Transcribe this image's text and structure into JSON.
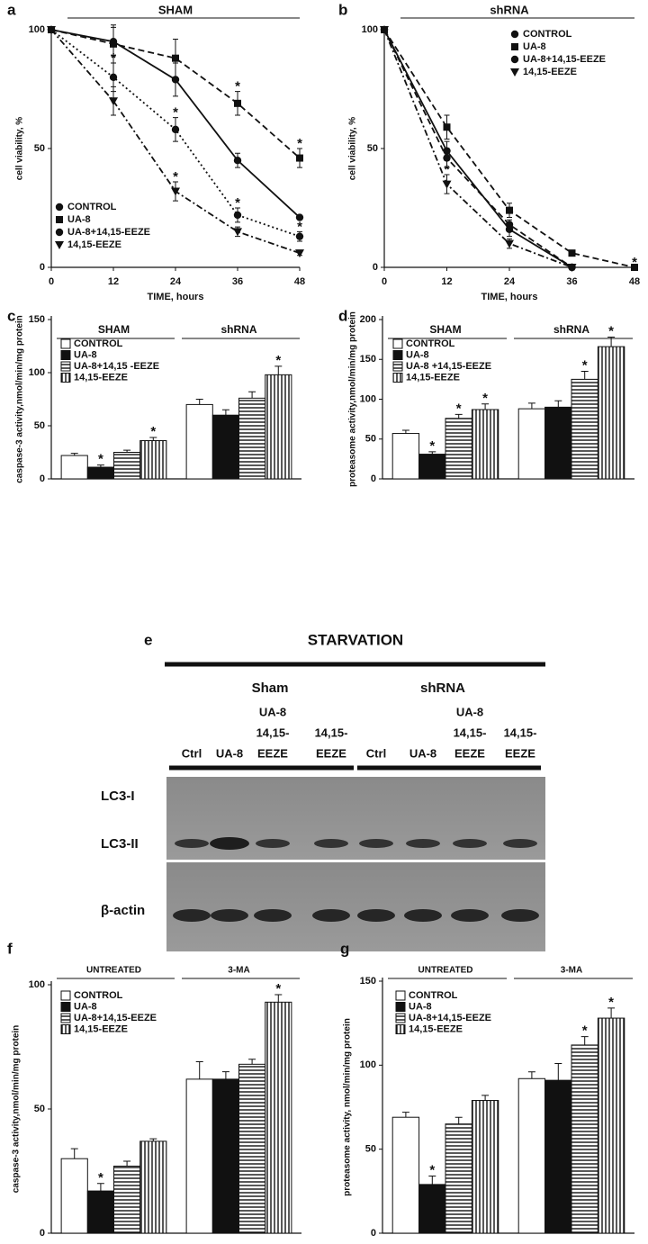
{
  "chart_data": [
    {
      "type": "line",
      "label": "a",
      "title": "SHAM",
      "x": [
        0,
        12,
        24,
        36,
        48
      ],
      "xlim": [
        0,
        48
      ],
      "xticks": [
        0,
        12,
        24,
        36,
        48
      ],
      "ylim": [
        0,
        100
      ],
      "yticks": [
        0,
        50,
        100
      ],
      "xlabel": "TIME, hours",
      "ylabel": "cell viability, %",
      "legend": "lower left",
      "series": [
        {
          "name": "CONTROL",
          "color": "#111111",
          "marker": "circle",
          "dash": "solid",
          "values": [
            100,
            95,
            79,
            45,
            21
          ],
          "errors": [
            0,
            6,
            7,
            3,
            0
          ]
        },
        {
          "name": "UA-8",
          "color": "#111111",
          "marker": "square",
          "dash": "dashed",
          "values": [
            100,
            94,
            88,
            69,
            46
          ],
          "errors": [
            0,
            8,
            8,
            5,
            4
          ]
        },
        {
          "name": "UA-8+14,15-EEZE",
          "color": "#111111",
          "marker": "circle",
          "dash": "dotted",
          "values": [
            100,
            80,
            58,
            22,
            13
          ],
          "errors": [
            0,
            6,
            5,
            3,
            2
          ]
        },
        {
          "name": "14,15-EEZE",
          "color": "#111111",
          "marker": "triangle",
          "dash": "dashdot",
          "values": [
            100,
            70,
            32,
            15,
            6
          ],
          "errors": [
            0,
            6,
            4,
            2,
            1
          ]
        }
      ],
      "annotations": [
        {
          "text": "*",
          "series": 1,
          "point": 3
        },
        {
          "text": "*",
          "series": 1,
          "point": 4
        },
        {
          "text": "*",
          "series": 2,
          "point": 1
        },
        {
          "text": "*",
          "series": 2,
          "point": 2
        },
        {
          "text": "*",
          "series": 2,
          "point": 3
        },
        {
          "text": "*",
          "series": 2,
          "point": 4
        },
        {
          "text": "*",
          "series": 3,
          "point": 2
        }
      ]
    },
    {
      "type": "line",
      "label": "b",
      "title": "shRNA",
      "x": [
        0,
        12,
        24,
        36,
        48
      ],
      "xlim": [
        0,
        48
      ],
      "xticks": [
        0,
        12,
        24,
        36,
        48
      ],
      "ylim": [
        0,
        100
      ],
      "yticks": [
        0,
        50,
        100
      ],
      "xlabel": "TIME, hours",
      "ylabel": "cell viability, %",
      "legend": "upper right",
      "series": [
        {
          "name": "CONTROL",
          "color": "#111111",
          "marker": "circle",
          "dash": "solid",
          "values": [
            100,
            49,
            16,
            0,
            null
          ],
          "errors": [
            0,
            4,
            3,
            1,
            null
          ]
        },
        {
          "name": "UA-8",
          "color": "#111111",
          "marker": "square",
          "dash": "dashed",
          "values": [
            100,
            59,
            24,
            6,
            0
          ],
          "errors": [
            0,
            5,
            3,
            1,
            0
          ]
        },
        {
          "name": "UA-8+14,15-EEZE",
          "color": "#111111",
          "marker": "circle",
          "dash": "dashed",
          "values": [
            100,
            46,
            18,
            0,
            null
          ],
          "errors": [
            0,
            4,
            2,
            1,
            null
          ]
        },
        {
          "name": "14,15-EEZE",
          "color": "#111111",
          "marker": "triangle",
          "dash": "dashdot",
          "values": [
            100,
            35,
            10,
            0,
            null
          ],
          "errors": [
            0,
            4,
            2,
            1,
            null
          ]
        }
      ],
      "annotations": [
        {
          "text": "*",
          "series": 3,
          "point": 1
        },
        {
          "text": "*",
          "series": 1,
          "point": 4
        }
      ]
    },
    {
      "type": "bar",
      "label": "c",
      "categories": [
        "SHAM",
        "shRNA"
      ],
      "ylim": [
        0,
        150
      ],
      "yticks": [
        0,
        50,
        100,
        150
      ],
      "ylabel": "caspase-3 activity,nmol/min/mg protein",
      "legend": "upper left",
      "series": [
        {
          "name": "CONTROL",
          "fill": "white",
          "values": [
            22,
            70
          ],
          "errors": [
            2,
            5
          ]
        },
        {
          "name": "UA-8",
          "fill": "black",
          "values": [
            11,
            60
          ],
          "errors": [
            2,
            5
          ]
        },
        {
          "name": "UA-8+14,15 -EEZE",
          "fill": "hstripe",
          "values": [
            25,
            76
          ],
          "errors": [
            2,
            6
          ]
        },
        {
          "name": "14,15-EEZE",
          "fill": "vstripe",
          "values": [
            36,
            98
          ],
          "errors": [
            3,
            8
          ]
        }
      ],
      "annotations": [
        {
          "text": "*",
          "series": 1,
          "point": 0
        },
        {
          "text": "*",
          "series": 3,
          "point": 0
        },
        {
          "text": "*",
          "series": 3,
          "point": 1
        }
      ]
    },
    {
      "type": "bar",
      "label": "d",
      "categories": [
        "SHAM",
        "shRNA"
      ],
      "ylim": [
        0,
        200
      ],
      "yticks": [
        0,
        50,
        100,
        150,
        200
      ],
      "ylabel": "proteasome activity,nmol/min/mg protein",
      "legend": "upper left",
      "series": [
        {
          "name": "CONTROL",
          "fill": "white",
          "values": [
            57,
            88
          ],
          "errors": [
            4,
            7
          ]
        },
        {
          "name": "UA-8",
          "fill": "black",
          "values": [
            31,
            90
          ],
          "errors": [
            3,
            8
          ]
        },
        {
          "name": "UA-8 +14,15-EEZE",
          "fill": "hstripe",
          "values": [
            76,
            125
          ],
          "errors": [
            5,
            10
          ]
        },
        {
          "name": "14,15-EEZE",
          "fill": "vstripe",
          "values": [
            87,
            166
          ],
          "errors": [
            7,
            12
          ]
        }
      ],
      "annotations": [
        {
          "text": "*",
          "series": 1,
          "point": 0
        },
        {
          "text": "*",
          "series": 2,
          "point": 0
        },
        {
          "text": "*",
          "series": 3,
          "point": 0
        },
        {
          "text": "*",
          "series": 2,
          "point": 1
        },
        {
          "text": "*",
          "series": 3,
          "point": 1
        }
      ]
    },
    {
      "type": "bar",
      "label": "f",
      "categories": [
        "UNTREATED",
        "3-MA"
      ],
      "ylim": [
        0,
        100
      ],
      "yticks": [
        0,
        50,
        100
      ],
      "ylabel": "caspase-3 activity,nmol/min/mg protein",
      "legend": "upper left",
      "series": [
        {
          "name": "CONTROL",
          "fill": "white",
          "values": [
            30,
            62
          ],
          "errors": [
            4,
            7
          ]
        },
        {
          "name": "UA-8",
          "fill": "black",
          "values": [
            17,
            62
          ],
          "errors": [
            3,
            3
          ]
        },
        {
          "name": "UA-8+14,15-EEZE",
          "fill": "hstripe",
          "values": [
            27,
            68
          ],
          "errors": [
            2,
            2
          ]
        },
        {
          "name": "14,15-EEZE",
          "fill": "vstripe",
          "values": [
            37,
            93
          ],
          "errors": [
            1,
            3
          ]
        }
      ],
      "annotations": [
        {
          "text": "*",
          "series": 1,
          "point": 0
        },
        {
          "text": "*",
          "series": 3,
          "point": 1
        }
      ]
    },
    {
      "type": "bar",
      "label": "g",
      "categories": [
        "UNTREATED",
        "3-MA"
      ],
      "ylim": [
        0,
        150
      ],
      "yticks": [
        0,
        50,
        100,
        150
      ],
      "ylabel": "proteasome activity, nmol/min/mg protein",
      "legend": "upper left",
      "series": [
        {
          "name": "CONTROL",
          "fill": "white",
          "values": [
            69,
            92
          ],
          "errors": [
            3,
            4
          ]
        },
        {
          "name": "UA-8",
          "fill": "black",
          "values": [
            29,
            91
          ],
          "errors": [
            5,
            10
          ]
        },
        {
          "name": "UA-8+14,15-EEZE",
          "fill": "hstripe",
          "values": [
            65,
            112
          ],
          "errors": [
            4,
            5
          ]
        },
        {
          "name": "14,15-EEZE",
          "fill": "vstripe",
          "values": [
            79,
            128
          ],
          "errors": [
            3,
            6
          ]
        }
      ],
      "annotations": [
        {
          "text": "*",
          "series": 1,
          "point": 0
        },
        {
          "text": "*",
          "series": 2,
          "point": 1
        },
        {
          "text": "*",
          "series": 3,
          "point": 1
        }
      ]
    }
  ],
  "blot": {
    "label": "e",
    "title": "STARVATION",
    "groups": [
      "Sham",
      "shRNA"
    ],
    "lanes": [
      [
        "Ctrl"
      ],
      [
        "UA-8"
      ],
      [
        "UA-8",
        "14,15-",
        "EEZE"
      ],
      [
        "14,15-",
        "EEZE"
      ],
      [
        "Ctrl"
      ],
      [
        "UA-8"
      ],
      [
        "UA-8",
        "14,15-",
        "EEZE"
      ],
      [
        "14,15-",
        "EEZE"
      ]
    ],
    "rows": [
      "LC3-I",
      "LC3-II",
      "β-actin"
    ]
  }
}
